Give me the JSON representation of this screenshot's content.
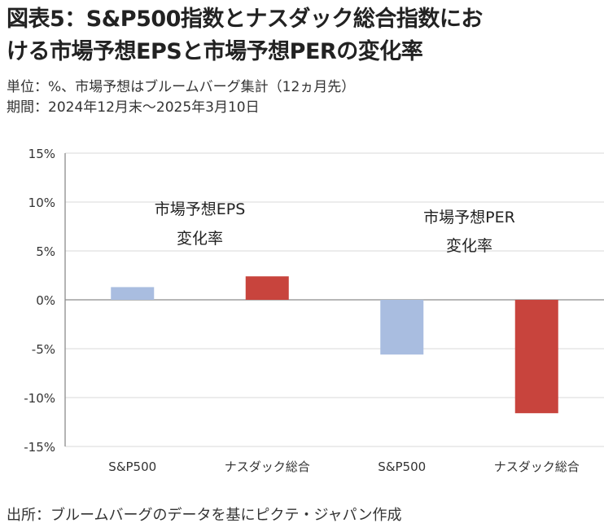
{
  "header": {
    "title_line1": "図表5：S&P500指数とナスダック総合指数にお",
    "title_line2": "ける市場予想EPSと市場予想PERの変化率",
    "unit": "単位：%、市場予想はブルームバーグ集計（12ヵ月先）",
    "period": "期間：2024年12月末～2025年3月10日"
  },
  "footer": {
    "source": "出所：ブルームバーグのデータを基にピクテ・ジャパン作成"
  },
  "colors": {
    "sp500": "#a9bde0",
    "nasdaq": "#c8443d",
    "axis": "#8c8c8c",
    "grid": "#d9d9d9"
  },
  "chart_data": {
    "type": "bar",
    "title": "",
    "xlabel": "",
    "ylabel": "",
    "ylim": [
      -15,
      15
    ],
    "yticks": [
      15,
      10,
      5,
      0,
      -5,
      -10,
      -15
    ],
    "ytick_labels": [
      "15%",
      "10%",
      "5%",
      "0%",
      "-5%",
      "-10%",
      "-15%"
    ],
    "categories": [
      "S&P500",
      "ナスダック総合",
      "S&P500",
      "ナスダック総合"
    ],
    "values": [
      1.3,
      2.4,
      -5.6,
      -11.6
    ],
    "groups": [
      {
        "label_line1": "市場予想EPS",
        "label_line2": "変化率"
      },
      {
        "label_line1": "市場予想PER",
        "label_line2": "変化率"
      }
    ]
  }
}
